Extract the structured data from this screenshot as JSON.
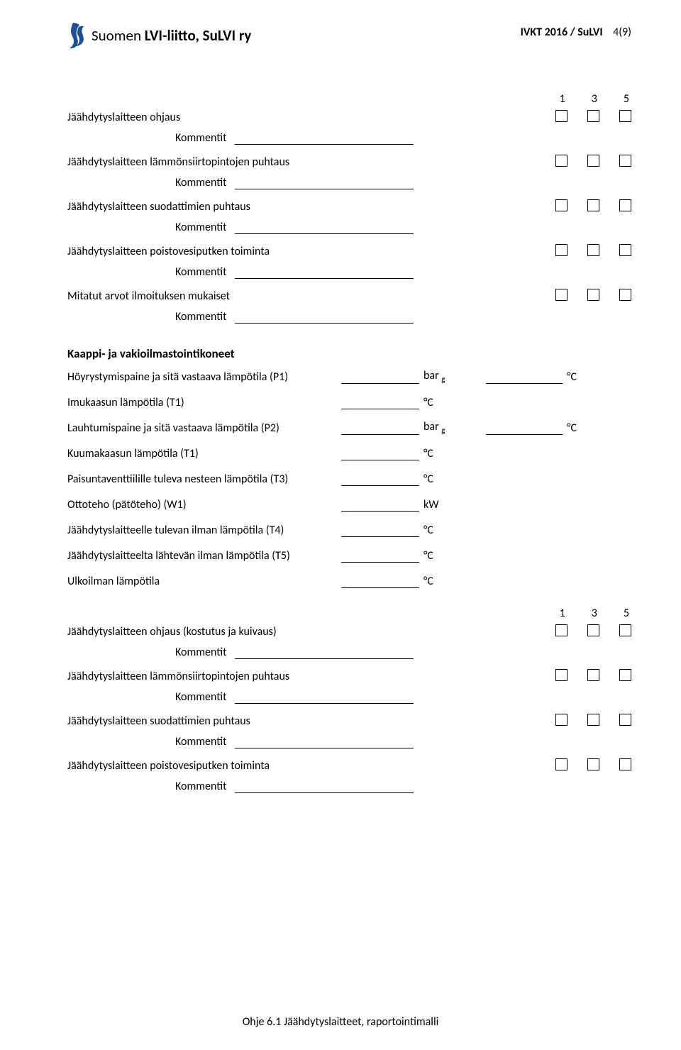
{
  "header": {
    "org_prefix": "Suomen ",
    "org_bold": "LVI-liitto, SuLVI ry",
    "doc_id": "IVKT 2016 / SuLVI",
    "page_num": "4(9)"
  },
  "checklist1": {
    "rating_labels": [
      "1",
      "3",
      "5"
    ],
    "items": [
      {
        "label": "Jäähdytyslaitteen ohjaus",
        "comment_label": "Kommentit"
      },
      {
        "label": "Jäähdytyslaitteen lämmönsiirtopintojen puhtaus",
        "comment_label": "Kommentit"
      },
      {
        "label": "Jäähdytyslaitteen suodattimien puhtaus",
        "comment_label": "Kommentit"
      },
      {
        "label": "Jäähdytyslaitteen poistovesiputken toiminta",
        "comment_label": "Kommentit"
      },
      {
        "label": "Mitatut arvot ilmoituksen mukaiset",
        "comment_label": "Kommentit"
      }
    ]
  },
  "section2": {
    "heading": "Kaappi- ja vakioilmastointikoneet",
    "rows": [
      {
        "label": "Höyrystymispaine ja sitä vastaava lämpötila (P1)",
        "unit1": "bar",
        "unit1_sub": "g",
        "unit2": "°C"
      },
      {
        "label": "Imukaasun lämpötila (T1)",
        "unit1": "°C"
      },
      {
        "label": "Lauhtumispaine ja sitä vastaava lämpötila (P2)",
        "unit1": "bar",
        "unit1_sub": "g",
        "unit2": "°C"
      },
      {
        "label": "Kuumakaasun lämpötila (T1)",
        "unit1": "°C"
      },
      {
        "label": "Paisuntaventtiilille tuleva nesteen lämpötila (T3)",
        "unit1": "°C"
      },
      {
        "label": "Ottoteho (pätöteho) (W1)",
        "unit1": "kW"
      },
      {
        "label": "Jäähdytyslaitteelle tulevan ilman lämpötila (T4)",
        "unit1": "°C"
      },
      {
        "label": "Jäähdytyslaitteelta lähtevän ilman lämpötila (T5)",
        "unit1": "°C"
      },
      {
        "label": "Ulkoilman lämpötila",
        "unit1": "°C"
      }
    ]
  },
  "checklist2": {
    "rating_labels": [
      "1",
      "3",
      "5"
    ],
    "items": [
      {
        "label": "Jäähdytyslaitteen ohjaus (kostutus ja kuivaus)",
        "comment_label": "Kommentit"
      },
      {
        "label": "Jäähdytyslaitteen lämmönsiirtopintojen puhtaus",
        "comment_label": "Kommentit"
      },
      {
        "label": "Jäähdytyslaitteen suodattimien puhtaus",
        "comment_label": "Kommentit"
      },
      {
        "label": "Jäähdytyslaitteen poistovesiputken toiminta",
        "comment_label": "Kommentit"
      }
    ]
  },
  "footer": "Ohje 6.1 Jäähdytyslaitteet, raportointimalli",
  "colors": {
    "logo_blue": "#1c4f9c",
    "text": "#000000",
    "bg": "#ffffff"
  }
}
